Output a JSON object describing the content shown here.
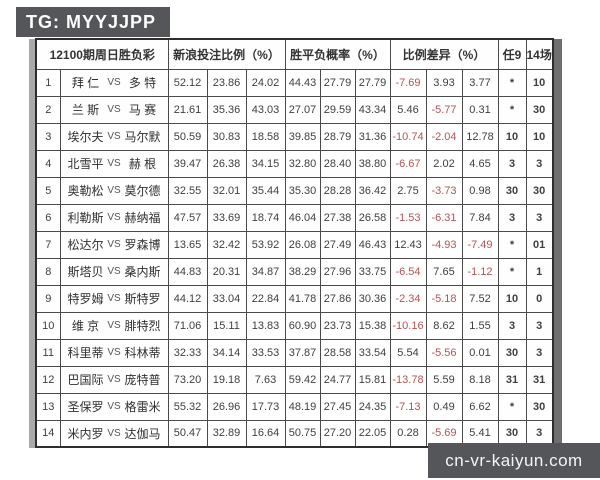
{
  "badge": {
    "label": "TG: MYYJJPP"
  },
  "watermark": {
    "label": "cn-vr-kaiyun.com"
  },
  "colors": {
    "badge_bg": "#55565a",
    "negative_red": "#b05555",
    "text": "#3f3f3f",
    "border": "#4a4a4a"
  },
  "table": {
    "headers": {
      "title": "12100期周日胜负彩",
      "bet_ratio": "新浪投注比例（%）",
      "probability": "胜平负概率（%）",
      "ratio_diff": "比例差异（%）",
      "ren9": "任9",
      "c14": "14场"
    },
    "rows": [
      {
        "no": "1",
        "home": "拜 仁",
        "vs": "VS",
        "away": "多 特",
        "bet": [
          "52.12",
          "23.86",
          "24.02"
        ],
        "prob": [
          "44.43",
          "27.79",
          "27.79"
        ],
        "diff": [
          "-7.69",
          "3.93",
          "3.77"
        ],
        "ren9": "*",
        "c14": "10"
      },
      {
        "no": "2",
        "home": "兰 斯",
        "vs": "VS",
        "away": "马 赛",
        "bet": [
          "21.61",
          "35.36",
          "43.03"
        ],
        "prob": [
          "27.07",
          "29.59",
          "43.34"
        ],
        "diff": [
          "5.46",
          "-5.77",
          "0.31"
        ],
        "ren9": "*",
        "c14": "30"
      },
      {
        "no": "3",
        "home": "埃尔夫",
        "vs": "VS",
        "away": "马尔默",
        "bet": [
          "50.59",
          "30.83",
          "18.58"
        ],
        "prob": [
          "39.85",
          "28.79",
          "31.36"
        ],
        "diff": [
          "-10.74",
          "-2.04",
          "12.78"
        ],
        "ren9": "10",
        "c14": "10"
      },
      {
        "no": "4",
        "home": "北雪平",
        "vs": "VS",
        "away": "赫 根",
        "bet": [
          "39.47",
          "26.38",
          "34.15"
        ],
        "prob": [
          "32.80",
          "28.40",
          "38.80"
        ],
        "diff": [
          "-6.67",
          "2.02",
          "4.65"
        ],
        "ren9": "3",
        "c14": "3"
      },
      {
        "no": "5",
        "home": "奥勒松",
        "vs": "VS",
        "away": "莫尔德",
        "bet": [
          "32.55",
          "32.01",
          "35.44"
        ],
        "prob": [
          "35.30",
          "28.28",
          "36.42"
        ],
        "diff": [
          "2.75",
          "-3.73",
          "0.98"
        ],
        "ren9": "30",
        "c14": "30"
      },
      {
        "no": "6",
        "home": "利勒斯",
        "vs": "VS",
        "away": "赫纳福",
        "bet": [
          "47.57",
          "33.69",
          "18.74"
        ],
        "prob": [
          "46.04",
          "27.38",
          "26.58"
        ],
        "diff": [
          "-1.53",
          "-6.31",
          "7.84"
        ],
        "ren9": "3",
        "c14": "3"
      },
      {
        "no": "7",
        "home": "松达尔",
        "vs": "VS",
        "away": "罗森博",
        "bet": [
          "13.65",
          "32.42",
          "53.92"
        ],
        "prob": [
          "26.08",
          "27.49",
          "46.43"
        ],
        "diff": [
          "12.43",
          "-4.93",
          "-7.49"
        ],
        "ren9": "*",
        "c14": "01"
      },
      {
        "no": "8",
        "home": "斯塔贝",
        "vs": "VS",
        "away": "桑内斯",
        "bet": [
          "44.83",
          "20.31",
          "34.87"
        ],
        "prob": [
          "38.29",
          "27.96",
          "33.75"
        ],
        "diff": [
          "-6.54",
          "7.65",
          "-1.12"
        ],
        "ren9": "*",
        "c14": "1"
      },
      {
        "no": "9",
        "home": "特罗姆",
        "vs": "VS",
        "away": "斯特罗",
        "bet": [
          "44.12",
          "33.04",
          "22.84"
        ],
        "prob": [
          "41.78",
          "27.86",
          "30.36"
        ],
        "diff": [
          "-2.34",
          "-5.18",
          "7.52"
        ],
        "ren9": "10",
        "c14": "0"
      },
      {
        "no": "10",
        "home": "维 京",
        "vs": "VS",
        "away": "腓特烈",
        "bet": [
          "71.06",
          "15.11",
          "13.83"
        ],
        "prob": [
          "60.90",
          "23.73",
          "15.38"
        ],
        "diff": [
          "-10.16",
          "8.62",
          "1.55"
        ],
        "ren9": "3",
        "c14": "3"
      },
      {
        "no": "11",
        "home": "科里蒂",
        "vs": "VS",
        "away": "科林蒂",
        "bet": [
          "32.33",
          "34.14",
          "33.53"
        ],
        "prob": [
          "37.87",
          "28.58",
          "33.54"
        ],
        "diff": [
          "5.54",
          "-5.56",
          "0.01"
        ],
        "ren9": "30",
        "c14": "3"
      },
      {
        "no": "12",
        "home": "巴国际",
        "vs": "VS",
        "away": "庞特普",
        "bet": [
          "73.20",
          "19.18",
          "7.63"
        ],
        "prob": [
          "59.42",
          "24.77",
          "15.81"
        ],
        "diff": [
          "-13.78",
          "5.59",
          "8.18"
        ],
        "ren9": "31",
        "c14": "31"
      },
      {
        "no": "13",
        "home": "圣保罗",
        "vs": "VS",
        "away": "格雷米",
        "bet": [
          "55.32",
          "26.96",
          "17.73"
        ],
        "prob": [
          "48.19",
          "27.45",
          "24.35"
        ],
        "diff": [
          "-7.13",
          "0.49",
          "6.62"
        ],
        "ren9": "*",
        "c14": "30"
      },
      {
        "no": "14",
        "home": "米内罗",
        "vs": "VS",
        "away": "达伽马",
        "bet": [
          "50.47",
          "32.89",
          "16.64"
        ],
        "prob": [
          "50.75",
          "27.20",
          "22.05"
        ],
        "diff": [
          "0.28",
          "-5.69",
          "5.41"
        ],
        "ren9": "30",
        "c14": "3"
      }
    ]
  }
}
